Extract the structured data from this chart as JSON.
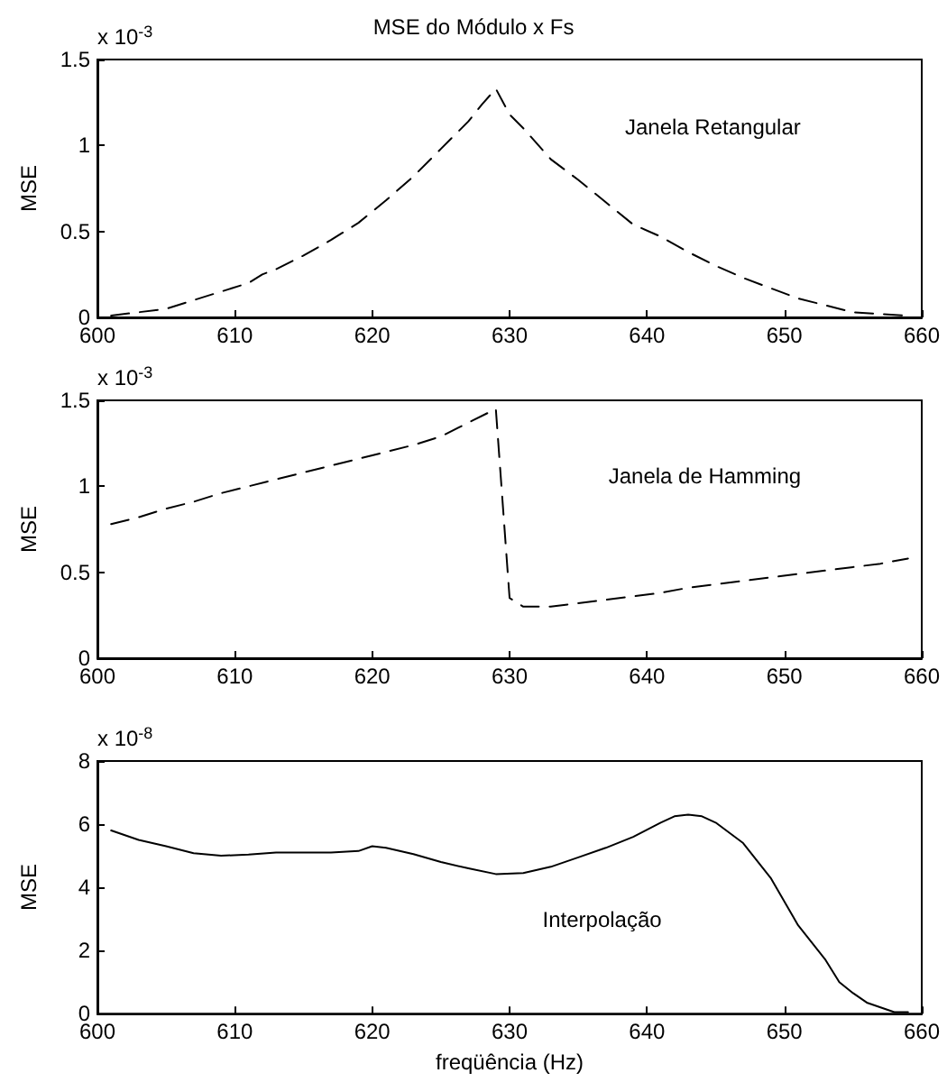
{
  "chart_data": [
    {
      "type": "line",
      "title": "MSE do Módulo x Fs",
      "ylabel": "MSE",
      "annotations": [
        "x 10$^{-3}$",
        "Janela Retangular"
      ],
      "line_style": "dashed",
      "marker": "none",
      "x": [
        601,
        603,
        605,
        607,
        609,
        611,
        612,
        613,
        615,
        617,
        619,
        621,
        623,
        625,
        627,
        628,
        629,
        630,
        631,
        633,
        635,
        637,
        639,
        641,
        643,
        645,
        647,
        649,
        651,
        653,
        655,
        657,
        659
      ],
      "series": [
        {
          "color": "#000000",
          "values": [
            0.01,
            0.03,
            0.05,
            0.1,
            0.15,
            0.2,
            0.25,
            0.28,
            0.36,
            0.45,
            0.55,
            0.68,
            0.82,
            0.98,
            1.14,
            1.24,
            1.33,
            1.18,
            1.1,
            0.92,
            0.8,
            0.67,
            0.54,
            0.47,
            0.38,
            0.3,
            0.23,
            0.17,
            0.11,
            0.07,
            0.03,
            0.02,
            0.01
          ]
        }
      ],
      "xlim": [
        600,
        660
      ],
      "xticks": [
        600,
        610,
        620,
        630,
        640,
        650,
        660
      ],
      "ylim": [
        0,
        1.5
      ],
      "yticks": [
        0,
        0.5,
        1,
        1.5
      ]
    },
    {
      "type": "line",
      "ylabel": "MSE",
      "annotations": [
        "x 10$^{-3}$",
        "Janela de Hamming"
      ],
      "line_style": "dashed",
      "marker": "none",
      "x": [
        601,
        603,
        605,
        607,
        609,
        611,
        613,
        615,
        617,
        619,
        621,
        623,
        625,
        627,
        629,
        630,
        631,
        633,
        635,
        637,
        639,
        641,
        643,
        645,
        647,
        649,
        651,
        653,
        655,
        657,
        659
      ],
      "series": [
        {
          "color": "#000000",
          "values": [
            0.78,
            0.82,
            0.87,
            0.91,
            0.96,
            1.0,
            1.04,
            1.08,
            1.12,
            1.16,
            1.2,
            1.24,
            1.29,
            1.37,
            1.45,
            0.35,
            0.3,
            0.3,
            0.32,
            0.34,
            0.36,
            0.38,
            0.41,
            0.43,
            0.45,
            0.47,
            0.49,
            0.51,
            0.53,
            0.55,
            0.58
          ]
        }
      ],
      "xlim": [
        600,
        660
      ],
      "xticks": [
        600,
        610,
        620,
        630,
        640,
        650,
        660
      ],
      "ylim": [
        0,
        1.5
      ],
      "yticks": [
        0,
        0.5,
        1,
        1.5
      ]
    },
    {
      "type": "line",
      "ylabel": "MSE",
      "xlabel": "freqüência (Hz)",
      "annotations": [
        "x 10$^{-8}$",
        "Interpolação"
      ],
      "line_style": "solid",
      "marker": "none",
      "x": [
        601,
        603,
        605,
        607,
        609,
        611,
        613,
        615,
        617,
        619,
        620,
        621,
        623,
        625,
        627,
        629,
        631,
        633,
        635,
        637,
        639,
        641,
        642,
        643,
        644,
        645,
        647,
        649,
        651,
        653,
        654,
        655,
        656,
        657,
        658,
        659
      ],
      "series": [
        {
          "color": "#000000",
          "values": [
            5.8,
            5.5,
            5.3,
            5.08,
            5.0,
            5.04,
            5.1,
            5.1,
            5.1,
            5.15,
            5.3,
            5.25,
            5.05,
            4.8,
            4.6,
            4.42,
            4.45,
            4.65,
            4.95,
            5.25,
            5.6,
            6.05,
            6.25,
            6.3,
            6.25,
            6.05,
            5.4,
            4.3,
            2.8,
            1.7,
            1.0,
            0.65,
            0.35,
            0.2,
            0.05,
            0.05
          ]
        }
      ],
      "xlim": [
        600,
        660
      ],
      "xticks": [
        600,
        610,
        620,
        630,
        640,
        650,
        660
      ],
      "ylim": [
        0,
        8
      ],
      "yticks": [
        0,
        2,
        4,
        6,
        8
      ]
    }
  ]
}
